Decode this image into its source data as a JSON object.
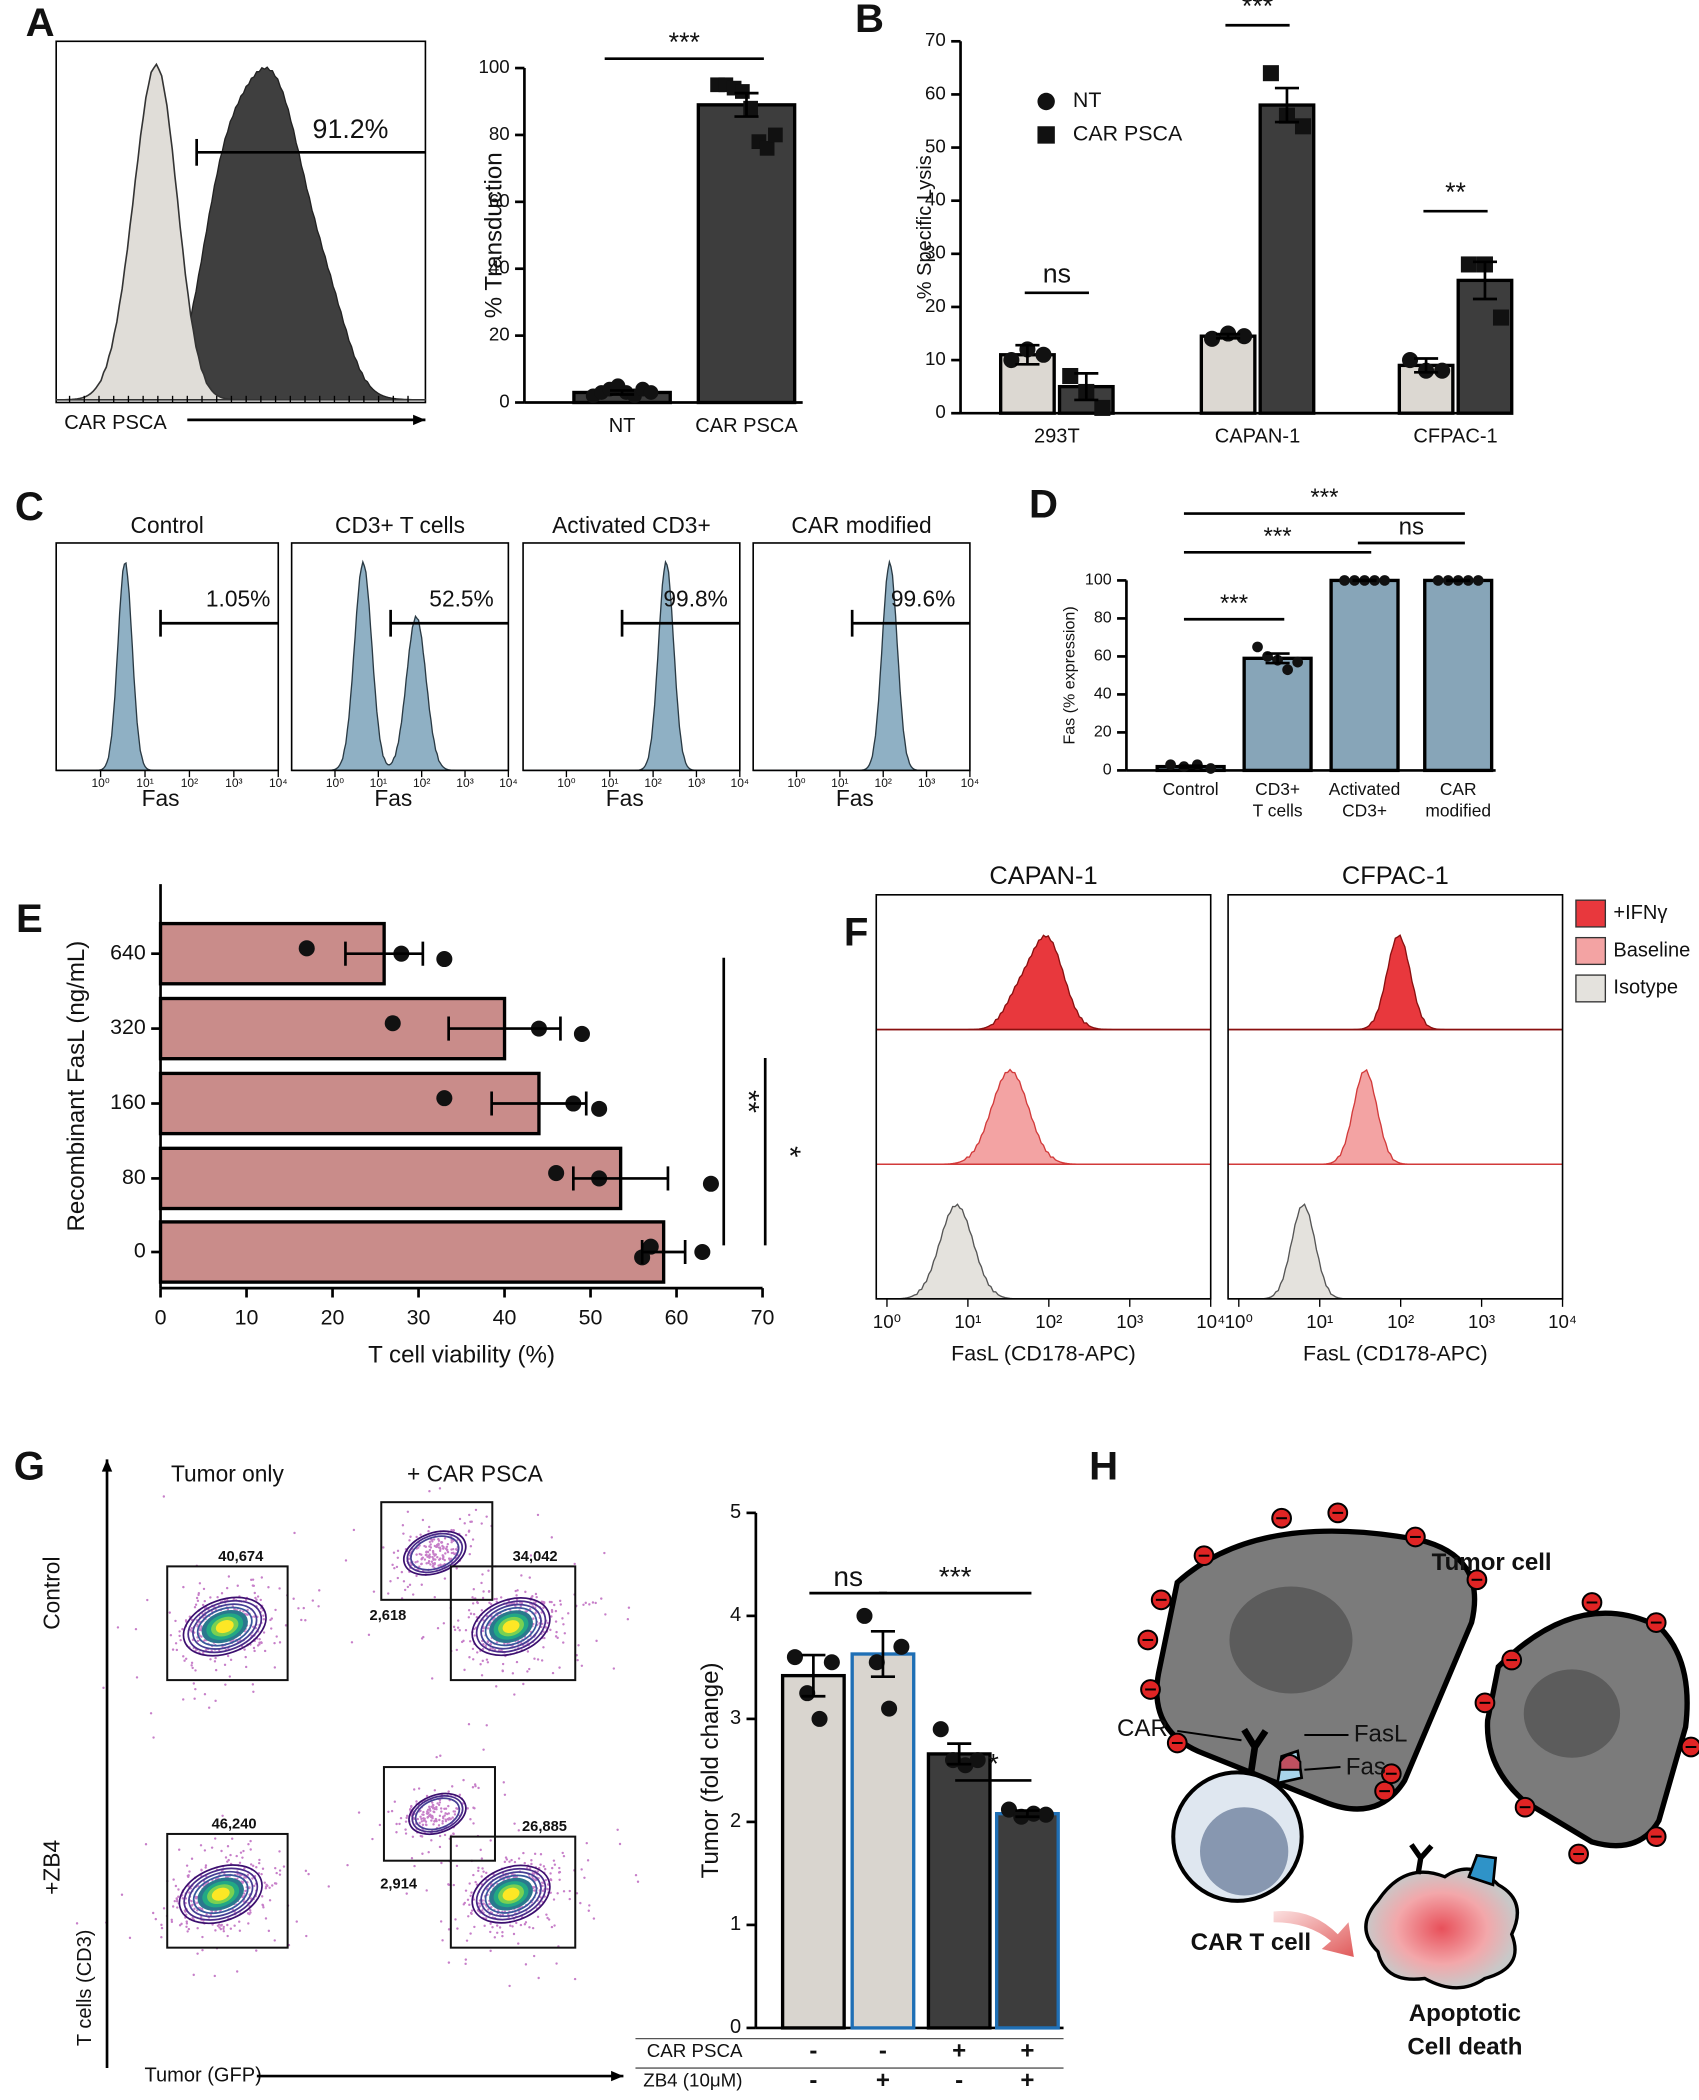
{
  "panels": {
    "A": {
      "letter": "A",
      "xlabel": "CAR PSCA",
      "gate_label": "91.2%"
    },
    "B": {
      "letter": "B"
    },
    "C": {
      "letter": "C",
      "titles": [
        "Control",
        "CD3+ T cells",
        "Activated CD3+",
        "CAR modified"
      ],
      "gate_labels": [
        "1.05%",
        "52.5%",
        "99.8%",
        "99.6%"
      ],
      "xlabel": "Fas",
      "log": true,
      "xlim": [
        0.1,
        10000
      ],
      "xticks": [
        {
          "value": 1,
          "label": "10⁰"
        },
        {
          "value": 10,
          "label": "10¹"
        },
        {
          "value": 100,
          "label": "10²"
        },
        {
          "value": 1000,
          "label": "10³"
        },
        {
          "value": 10000,
          "label": "10⁴"
        }
      ],
      "color": "#8fb0c4"
    },
    "D": {
      "letter": "D"
    },
    "E": {
      "letter": "E"
    },
    "F": {
      "letter": "F",
      "titles": [
        "CAPAN-1",
        "CFPAC-1"
      ],
      "legend": [
        {
          "name": "+IFNγ",
          "color": "#e8383d"
        },
        {
          "name": "Baseline",
          "color": "#f3a3a3"
        },
        {
          "name": "Isotype",
          "color": "#e4e2dd"
        }
      ],
      "xlabel": "FasL (CD178-APC)",
      "log": true,
      "xlim": [
        1,
        10000
      ],
      "xticks": [
        {
          "value": 1,
          "label": "10⁰"
        },
        {
          "value": 10,
          "label": "10¹"
        },
        {
          "value": 100,
          "label": "10²"
        },
        {
          "value": 1000,
          "label": "10³"
        },
        {
          "value": 10000,
          "label": "10⁴"
        }
      ]
    },
    "G": {
      "letter": "G",
      "columns": [
        "Tumor only",
        "+ CAR PSCA"
      ],
      "rows": [
        "Control",
        "+ZB4"
      ],
      "ylabel": "T cells (CD3)",
      "xlabel": "Tumor (GFP)",
      "gate_counts": [
        [
          "40,674"
        ],
        [
          "2,618",
          "34,042"
        ],
        [
          "46,240"
        ],
        [
          "2,914",
          "26,885"
        ]
      ]
    },
    "H": {
      "letter": "H",
      "labels": {
        "tumor": "Tumor cell",
        "car": "CAR",
        "fasl": "FasL",
        "fas": "Fas",
        "tcell": "CAR T cell",
        "death": [
          "Apoptotic",
          "Cell death"
        ]
      }
    }
  },
  "chart_data": [
    {
      "type": "bar",
      "categories": [
        "NT",
        "CAR PSCA"
      ],
      "values": [
        3,
        89
      ],
      "errors": [
        0.6,
        3.5
      ],
      "points": [
        [
          2,
          3,
          4,
          5,
          3,
          2,
          4,
          3
        ],
        [
          95,
          95,
          94,
          93,
          88,
          78,
          76,
          80
        ]
      ],
      "markers": [
        "circle",
        "square"
      ],
      "colors": [
        "#3d3d3d",
        "#3d3d3d"
      ],
      "ylabel": "% Transduction",
      "ylim": [
        0,
        100
      ],
      "yticks": [
        0,
        20,
        40,
        60,
        80,
        100
      ],
      "annotations": [
        {
          "text": "***",
          "from": 0,
          "to": 1
        }
      ]
    },
    {
      "type": "grouped-bar",
      "categories": [
        "293T",
        "CAPAN-1",
        "CFPAC-1"
      ],
      "series": [
        {
          "name": "NT",
          "color": "#dcd8d2",
          "marker": "circle",
          "values": [
            11,
            14.5,
            9
          ],
          "errors": [
            1.8,
            0.4,
            1.3
          ],
          "points": [
            [
              10,
              12,
              11
            ],
            [
              14,
              15,
              14.5
            ],
            [
              10,
              8,
              8
            ]
          ]
        },
        {
          "name": "CAR PSCA",
          "color": "#3d3d3d",
          "marker": "square",
          "values": [
            5,
            58,
            25
          ],
          "errors": [
            2.5,
            3.2,
            3.5
          ],
          "points": [
            [
              7,
              4,
              1
            ],
            [
              64,
              56,
              54
            ],
            [
              28,
              28,
              18
            ]
          ]
        }
      ],
      "ylabel": "% Specific Lysis",
      "ylim": [
        0,
        70
      ],
      "yticks": [
        0,
        10,
        20,
        30,
        40,
        50,
        60,
        70
      ],
      "annotations": [
        {
          "text": "ns",
          "category": 0
        },
        {
          "text": "***",
          "category": 1
        },
        {
          "text": "**",
          "category": 2
        }
      ]
    },
    {
      "type": "bar",
      "categories": [
        [
          "Control"
        ],
        [
          "CD3+",
          "T cells"
        ],
        [
          "Activated",
          "CD3+"
        ],
        [
          "CAR",
          "modified"
        ]
      ],
      "values": [
        2,
        59,
        100,
        100
      ],
      "errors": [
        0.5,
        2.5,
        0.2,
        0.2
      ],
      "points": [
        [
          3,
          2,
          3,
          1
        ],
        [
          65,
          60,
          58,
          53,
          57
        ],
        [
          100,
          100,
          100,
          100,
          100
        ],
        [
          100,
          100,
          100,
          100,
          100
        ]
      ],
      "colors": [
        "#87a5b8",
        "#87a5b8",
        "#87a5b8",
        "#87a5b8"
      ],
      "ylabel": "Fas (% expression)",
      "ylim": [
        0,
        100
      ],
      "yticks": [
        0,
        20,
        40,
        60,
        80,
        100
      ],
      "annotations": [
        {
          "text": "***",
          "from": 0,
          "to": 3
        },
        {
          "text": "***",
          "from": 0,
          "to": 2
        },
        {
          "text": "ns",
          "from": 2,
          "to": 3
        },
        {
          "text": "***",
          "from": 0,
          "to": 1
        }
      ]
    },
    {
      "type": "horizontal-bar",
      "categories": [
        "640",
        "320",
        "160",
        "80",
        "0"
      ],
      "values": [
        26,
        40,
        44,
        53.5,
        58.5
      ],
      "errors": [
        4.5,
        6.5,
        5.5,
        5.5,
        2.5
      ],
      "points": [
        [
          17,
          28,
          33
        ],
        [
          27,
          44,
          49
        ],
        [
          33,
          48,
          51
        ],
        [
          46,
          51,
          64
        ],
        [
          57,
          63,
          56
        ]
      ],
      "color": "#c98c8a",
      "xlabel": "T cell viability (%)",
      "ylabel": "Recombinant FasL (ng/mL)",
      "xlim": [
        0,
        70
      ],
      "xticks": [
        0,
        10,
        20,
        30,
        40,
        50,
        60,
        70
      ],
      "annotations": [
        {
          "text": "**",
          "from": 0,
          "to": 4
        },
        {
          "text": "*",
          "from": 1,
          "to": 4
        }
      ]
    },
    {
      "type": "bar",
      "categories": [
        null,
        null,
        null,
        null
      ],
      "values": [
        3.42,
        3.63,
        2.66,
        2.08
      ],
      "errors": [
        0.2,
        0.22,
        0.1,
        0.03
      ],
      "points": [
        [
          3.6,
          3.25,
          3.0,
          3.55
        ],
        [
          4.0,
          3.55,
          3.1,
          3.7
        ],
        [
          2.9,
          2.6,
          2.55,
          2.6
        ],
        [
          2.12,
          2.05,
          2.08,
          2.07
        ]
      ],
      "colors": [
        "#d9d5cf",
        "#d9d5cf",
        "#3d3d3d",
        "#3d3d3d"
      ],
      "edge_colors": [
        "#000000",
        "#1f6fb5",
        "#000000",
        "#1f6fb5"
      ],
      "rows": [
        {
          "name": "CAR PSCA",
          "values": [
            "-",
            "-",
            "+",
            "+"
          ]
        },
        {
          "name": "ZB4 (10μM)",
          "values": [
            "-",
            "+",
            "-",
            "+"
          ],
          "color": "#1f6fb5"
        }
      ],
      "ylabel": "Tumor (fold change)",
      "ylim": [
        0,
        5
      ],
      "yticks": [
        0,
        1,
        2,
        3,
        4,
        5
      ],
      "annotations": [
        {
          "text": "ns",
          "from": 0,
          "to": 1
        },
        {
          "text": "***",
          "from": 1,
          "to": 3
        },
        {
          "text": "*",
          "from": 2,
          "to": 3
        }
      ]
    }
  ]
}
